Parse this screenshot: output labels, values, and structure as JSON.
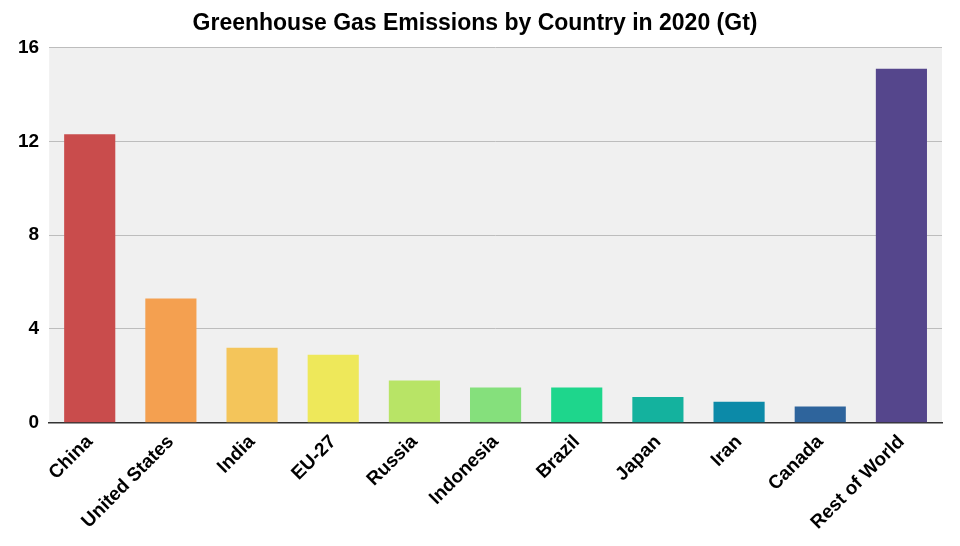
{
  "chart_data": {
    "type": "bar",
    "title": "Greenhouse Gas Emissions by Country in 2020 (Gt)",
    "categories": [
      "China",
      "United States",
      "India",
      "EU-27",
      "Russia",
      "Indonesia",
      "Brazil",
      "Japan",
      "Iran",
      "Canada",
      "Rest of World"
    ],
    "values": [
      12.3,
      5.3,
      3.2,
      2.9,
      1.8,
      1.5,
      1.5,
      1.1,
      0.9,
      0.7,
      15.1
    ],
    "colors": [
      "#c94c4c",
      "#f4a050",
      "#f4c55a",
      "#eee85a",
      "#b8e466",
      "#85e07c",
      "#1ed68c",
      "#14b29e",
      "#0c8aa8",
      "#2e649c",
      "#55468c"
    ],
    "ylim": [
      0,
      16
    ],
    "yticks": [
      0,
      4,
      8,
      12,
      16
    ],
    "grid": true
  }
}
